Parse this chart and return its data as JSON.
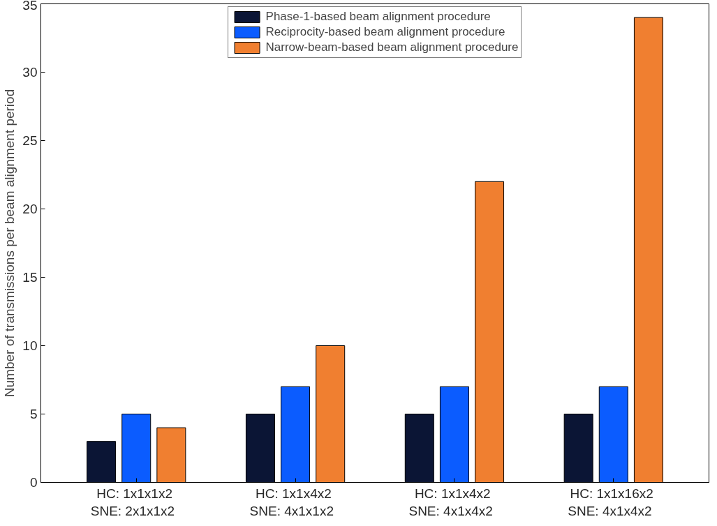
{
  "chart_data": {
    "type": "bar",
    "ylabel": "Number of transmissions per beam alignment period",
    "categories": [
      "HC:  1x1x1x2\n SNE:  2x1x1x2",
      "HC:  1x1x4x2\n SNE:  4x1x1x2",
      "HC:  1x1x4x2\n SNE:  4x1x4x2",
      "HC:  1x1x16x2\n SNE:  4x1x4x2"
    ],
    "series": [
      {
        "name": "Phase-1-based beam alignment procedure",
        "color": "#0b1535",
        "values": [
          3,
          5,
          5,
          5
        ]
      },
      {
        "name": "Reciprocity-based beam alignment procedure",
        "color": "#0b5cff",
        "values": [
          5,
          7,
          7,
          7
        ]
      },
      {
        "name": "Narrow-beam-based beam alignment procedure",
        "color": "#f07f30",
        "values": [
          4,
          10,
          22,
          34
        ]
      }
    ],
    "ylim": [
      0,
      35
    ],
    "yticks": [
      0,
      5,
      10,
      15,
      20,
      25,
      30,
      35
    ],
    "grid": false,
    "legend": "top"
  }
}
